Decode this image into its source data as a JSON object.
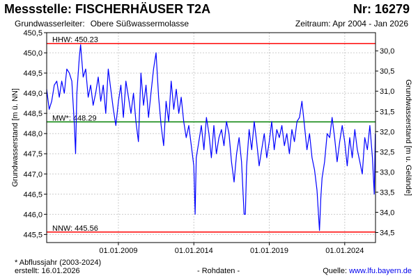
{
  "header": {
    "title": "Messstelle: FISCHERHÄUSER T2A",
    "number": "Nr: 16279",
    "aquifer_label": "Grundwasserleiter:",
    "aquifer_value": "Obere Süßwassermolasse",
    "period": "Zeitraum: Apr 2004 - Jan 2026"
  },
  "footer": {
    "note": "* Abflussjahr (2003-2024)",
    "created_label": "erstellt:",
    "created_date": "16.01.2026",
    "data_type": "- Rohdaten -",
    "source_label": "Quelle:",
    "source_url": "www.lfu.bayern.de"
  },
  "colors": {
    "series": "#0000ff",
    "extreme_lines": "#ff0000",
    "mean_line": "#008000",
    "grid": "#cccccc",
    "frame": "#000000"
  },
  "chart_data": {
    "type": "line",
    "ylabel_left": "Grundwasserstand [m ü. NN]",
    "ylabel_right": "Grundwasserstand [m u. Gelände]",
    "ylim_left": [
      445.3,
      450.5
    ],
    "ylim_right": [
      34.75,
      29.55
    ],
    "yticks_left": [
      "445,5",
      "446,0",
      "446,5",
      "447,0",
      "447,5",
      "448,0",
      "448,5",
      "449,0",
      "449,5",
      "450,0",
      "450,5"
    ],
    "yticks_right": [
      "30,0",
      "30,5",
      "31,0",
      "31,5",
      "32,0",
      "32,5",
      "33,0",
      "33,5",
      "34,0",
      "34,5"
    ],
    "xlim": [
      "2004-04-01",
      "2026-01-15"
    ],
    "xticks": [
      {
        "date": "2009-01-01",
        "label": "01.01.2009"
      },
      {
        "date": "2014-01-01",
        "label": "01.01.2014"
      },
      {
        "date": "2019-01-01",
        "label": "01.01.2019"
      },
      {
        "date": "2024-01-01",
        "label": "01.01.2024"
      }
    ],
    "grid": true,
    "reference_lines": [
      {
        "label": "HHW: 450.23",
        "value": 450.23,
        "color": "#ff0000"
      },
      {
        "label": "MW*: 448.29",
        "value": 448.29,
        "color": "#008000"
      },
      {
        "label": "NNW: 445.56",
        "value": 445.56,
        "color": "#ff0000"
      }
    ],
    "series": [
      {
        "points": [
          [
            "2004-04-01",
            449.1
          ],
          [
            "2004-06-01",
            448.6
          ],
          [
            "2004-08-01",
            448.8
          ],
          [
            "2004-10-01",
            449.2
          ],
          [
            "2004-12-01",
            449.3
          ],
          [
            "2005-02-01",
            448.9
          ],
          [
            "2005-04-01",
            449.3
          ],
          [
            "2005-06-01",
            449.0
          ],
          [
            "2005-08-01",
            449.6
          ],
          [
            "2005-10-01",
            449.5
          ],
          [
            "2005-12-01",
            449.3
          ],
          [
            "2006-02-01",
            448.2
          ],
          [
            "2006-03-01",
            447.5
          ],
          [
            "2006-04-01",
            449.0
          ],
          [
            "2006-06-01",
            449.9
          ],
          [
            "2006-07-01",
            450.2
          ],
          [
            "2006-09-01",
            449.4
          ],
          [
            "2006-11-01",
            449.6
          ],
          [
            "2007-01-01",
            448.9
          ],
          [
            "2007-03-01",
            449.2
          ],
          [
            "2007-05-01",
            448.7
          ],
          [
            "2007-07-01",
            449.0
          ],
          [
            "2007-09-01",
            449.4
          ],
          [
            "2007-11-01",
            448.8
          ],
          [
            "2008-01-01",
            449.2
          ],
          [
            "2008-03-01",
            448.5
          ],
          [
            "2008-05-01",
            449.6
          ],
          [
            "2008-07-01",
            449.1
          ],
          [
            "2008-09-01",
            448.6
          ],
          [
            "2008-11-01",
            448.2
          ],
          [
            "2009-01-01",
            448.8
          ],
          [
            "2009-03-01",
            449.2
          ],
          [
            "2009-05-01",
            448.4
          ],
          [
            "2009-07-01",
            449.3
          ],
          [
            "2009-09-01",
            448.9
          ],
          [
            "2009-11-01",
            448.5
          ],
          [
            "2010-01-01",
            449.0
          ],
          [
            "2010-03-01",
            448.3
          ],
          [
            "2010-05-01",
            447.8
          ],
          [
            "2010-07-01",
            449.5
          ],
          [
            "2010-09-01",
            448.7
          ],
          [
            "2010-11-01",
            449.2
          ],
          [
            "2011-01-01",
            448.4
          ],
          [
            "2011-03-01",
            449.0
          ],
          [
            "2011-05-01",
            449.6
          ],
          [
            "2011-07-01",
            450.0
          ],
          [
            "2011-09-01",
            448.9
          ],
          [
            "2011-11-01",
            448.2
          ],
          [
            "2012-01-01",
            447.7
          ],
          [
            "2012-03-01",
            448.8
          ],
          [
            "2012-05-01",
            448.3
          ],
          [
            "2012-07-01",
            449.3
          ],
          [
            "2012-09-01",
            448.6
          ],
          [
            "2012-11-01",
            449.1
          ],
          [
            "2013-01-01",
            448.5
          ],
          [
            "2013-03-01",
            448.9
          ],
          [
            "2013-05-01",
            448.3
          ],
          [
            "2013-07-01",
            447.9
          ],
          [
            "2013-09-01",
            448.2
          ],
          [
            "2013-11-01",
            447.7
          ],
          [
            "2014-01-01",
            447.2
          ],
          [
            "2014-02-01",
            446.0
          ],
          [
            "2014-03-01",
            447.4
          ],
          [
            "2014-05-01",
            447.8
          ],
          [
            "2014-07-01",
            448.2
          ],
          [
            "2014-09-01",
            447.6
          ],
          [
            "2014-11-01",
            448.4
          ],
          [
            "2015-01-01",
            448.0
          ],
          [
            "2015-03-01",
            447.4
          ],
          [
            "2015-05-01",
            448.2
          ],
          [
            "2015-07-01",
            447.5
          ],
          [
            "2015-09-01",
            447.9
          ],
          [
            "2015-11-01",
            448.1
          ],
          [
            "2016-01-01",
            447.7
          ],
          [
            "2016-03-01",
            448.3
          ],
          [
            "2016-05-01",
            448.0
          ],
          [
            "2016-07-01",
            447.3
          ],
          [
            "2016-09-01",
            446.8
          ],
          [
            "2016-11-01",
            447.5
          ],
          [
            "2017-01-01",
            447.9
          ],
          [
            "2017-03-01",
            447.3
          ],
          [
            "2017-05-01",
            446.0
          ],
          [
            "2017-06-01",
            446.0
          ],
          [
            "2017-07-01",
            447.2
          ],
          [
            "2017-09-01",
            448.1
          ],
          [
            "2017-11-01",
            447.6
          ],
          [
            "2018-01-01",
            448.3
          ],
          [
            "2018-03-01",
            447.8
          ],
          [
            "2018-05-01",
            447.2
          ],
          [
            "2018-07-01",
            447.6
          ],
          [
            "2018-09-01",
            448.0
          ],
          [
            "2018-11-01",
            447.4
          ],
          [
            "2019-01-01",
            447.8
          ],
          [
            "2019-03-01",
            448.3
          ],
          [
            "2019-05-01",
            447.6
          ],
          [
            "2019-07-01",
            448.1
          ],
          [
            "2019-09-01",
            447.9
          ],
          [
            "2019-11-01",
            448.2
          ],
          [
            "2020-01-01",
            447.7
          ],
          [
            "2020-03-01",
            448.0
          ],
          [
            "2020-05-01",
            447.5
          ],
          [
            "2020-07-01",
            448.1
          ],
          [
            "2020-09-01",
            447.8
          ],
          [
            "2020-11-01",
            448.3
          ],
          [
            "2021-01-01",
            448.4
          ],
          [
            "2021-03-01",
            448.8
          ],
          [
            "2021-05-01",
            448.2
          ],
          [
            "2021-07-01",
            447.6
          ],
          [
            "2021-09-01",
            448.0
          ],
          [
            "2021-11-01",
            447.4
          ],
          [
            "2022-01-01",
            447.1
          ],
          [
            "2022-03-01",
            446.6
          ],
          [
            "2022-05-01",
            445.6
          ],
          [
            "2022-06-01",
            446.4
          ],
          [
            "2022-07-01",
            446.9
          ],
          [
            "2022-09-01",
            447.3
          ],
          [
            "2022-11-01",
            448.0
          ],
          [
            "2023-01-01",
            447.9
          ],
          [
            "2023-03-01",
            448.4
          ],
          [
            "2023-05-01",
            447.9
          ],
          [
            "2023-07-01",
            447.3
          ],
          [
            "2023-09-01",
            447.8
          ],
          [
            "2023-11-01",
            448.2
          ],
          [
            "2024-01-01",
            447.8
          ],
          [
            "2024-03-01",
            447.2
          ],
          [
            "2024-05-01",
            447.9
          ],
          [
            "2024-07-01",
            447.4
          ],
          [
            "2024-09-01",
            448.1
          ],
          [
            "2024-11-01",
            447.6
          ],
          [
            "2025-01-01",
            447.3
          ],
          [
            "2025-03-01",
            447.0
          ],
          [
            "2025-05-01",
            447.9
          ],
          [
            "2025-07-01",
            447.6
          ],
          [
            "2025-09-01",
            448.2
          ],
          [
            "2025-11-01",
            447.4
          ],
          [
            "2025-12-15",
            446.5
          ],
          [
            "2026-01-10",
            448.0
          ]
        ]
      }
    ]
  }
}
